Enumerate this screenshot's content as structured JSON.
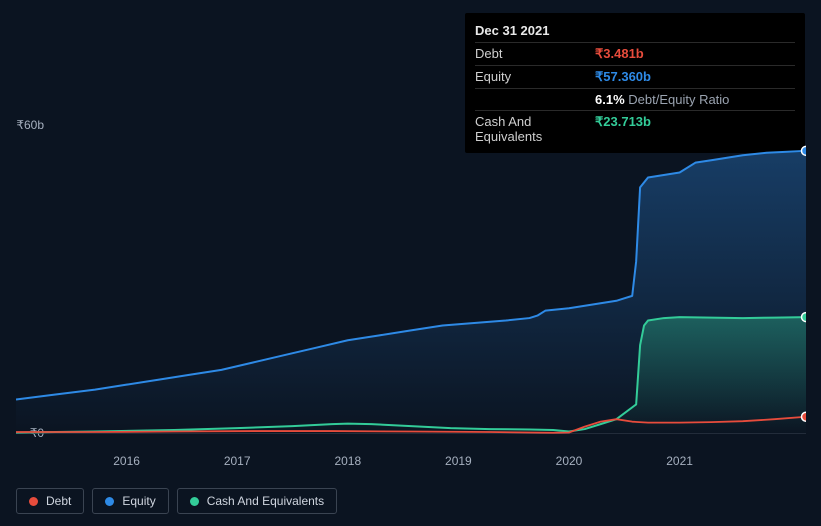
{
  "tooltip": {
    "date": "Dec 31 2021",
    "rows": [
      {
        "label": "Debt",
        "value": "₹3.481b",
        "cls": "debt"
      },
      {
        "label": "Equity",
        "value": "₹57.360b",
        "cls": "equity"
      },
      {
        "label": "",
        "value_bold": "6.1%",
        "value_muted": "Debt/Equity Ratio",
        "cls": "ratio"
      },
      {
        "label": "Cash And Equivalents",
        "value": "₹23.713b",
        "cls": "cash"
      }
    ]
  },
  "chart": {
    "type": "area-line",
    "background_color": "#0b1421",
    "plot_background_top": "#1a2a3f",
    "plot_background_bot": "#0e1a2b",
    "y_top_label": "₹60b",
    "y_bot_label": "₹0",
    "ylim": [
      0,
      60
    ],
    "x_categories": [
      "2016",
      "2017",
      "2018",
      "2019",
      "2020",
      "2021"
    ],
    "x_positions_pct": [
      14,
      28,
      42,
      56,
      70,
      84
    ],
    "series": {
      "equity": {
        "label": "Equity",
        "color": "#2e8ae6",
        "fill_top": "rgba(46,138,230,0.35)",
        "fill_bot": "rgba(46,138,230,0.0)",
        "line_width": 2,
        "points": [
          [
            0,
            7
          ],
          [
            5,
            8
          ],
          [
            10,
            9
          ],
          [
            14,
            10
          ],
          [
            18,
            11
          ],
          [
            22,
            12
          ],
          [
            26,
            13
          ],
          [
            30,
            14.5
          ],
          [
            34,
            16
          ],
          [
            38,
            17.5
          ],
          [
            42,
            19
          ],
          [
            46,
            20
          ],
          [
            50,
            21
          ],
          [
            54,
            22
          ],
          [
            58,
            22.5
          ],
          [
            62,
            23
          ],
          [
            65,
            23.5
          ],
          [
            66,
            24
          ],
          [
            67,
            25
          ],
          [
            70,
            25.5
          ],
          [
            72,
            26
          ],
          [
            74,
            26.5
          ],
          [
            76,
            27
          ],
          [
            77,
            27.5
          ],
          [
            78,
            28
          ],
          [
            78.5,
            35
          ],
          [
            79,
            50
          ],
          [
            80,
            52
          ],
          [
            82,
            52.5
          ],
          [
            84,
            53
          ],
          [
            86,
            55
          ],
          [
            88,
            55.5
          ],
          [
            90,
            56
          ],
          [
            92,
            56.5
          ],
          [
            95,
            57
          ],
          [
            100,
            57.4
          ]
        ],
        "current_value": 57.4
      },
      "cash": {
        "label": "Cash And Equivalents",
        "color": "#33cc99",
        "fill_top": "rgba(51,204,153,0.35)",
        "fill_bot": "rgba(51,204,153,0.0)",
        "line_width": 2,
        "points": [
          [
            0,
            0.3
          ],
          [
            10,
            0.5
          ],
          [
            20,
            0.8
          ],
          [
            28,
            1.2
          ],
          [
            35,
            1.6
          ],
          [
            40,
            2.0
          ],
          [
            42,
            2.1
          ],
          [
            45,
            2.0
          ],
          [
            50,
            1.6
          ],
          [
            55,
            1.2
          ],
          [
            60,
            1.0
          ],
          [
            65,
            0.9
          ],
          [
            68,
            0.8
          ],
          [
            70,
            0.5
          ],
          [
            72,
            1.0
          ],
          [
            74,
            2.0
          ],
          [
            76,
            3.0
          ],
          [
            78.5,
            6
          ],
          [
            79,
            18
          ],
          [
            79.5,
            22
          ],
          [
            80,
            23
          ],
          [
            82,
            23.5
          ],
          [
            84,
            23.7
          ],
          [
            88,
            23.6
          ],
          [
            92,
            23.5
          ],
          [
            96,
            23.6
          ],
          [
            100,
            23.7
          ]
        ],
        "current_value": 23.7
      },
      "debt": {
        "label": "Debt",
        "color": "#e74c3c",
        "fill_top": "rgba(231,76,60,0.0)",
        "fill_bot": "rgba(231,76,60,0.0)",
        "line_width": 1.8,
        "points": [
          [
            0,
            0.4
          ],
          [
            10,
            0.4
          ],
          [
            20,
            0.5
          ],
          [
            30,
            0.6
          ],
          [
            40,
            0.6
          ],
          [
            50,
            0.5
          ],
          [
            60,
            0.4
          ],
          [
            65,
            0.3
          ],
          [
            68,
            0.25
          ],
          [
            70,
            0.3
          ],
          [
            72,
            1.5
          ],
          [
            74,
            2.5
          ],
          [
            76,
            3.0
          ],
          [
            78,
            2.5
          ],
          [
            80,
            2.3
          ],
          [
            84,
            2.3
          ],
          [
            88,
            2.4
          ],
          [
            92,
            2.6
          ],
          [
            96,
            3.0
          ],
          [
            100,
            3.5
          ]
        ],
        "current_value": 3.5
      }
    },
    "legend_order": [
      "debt",
      "equity",
      "cash"
    ]
  }
}
